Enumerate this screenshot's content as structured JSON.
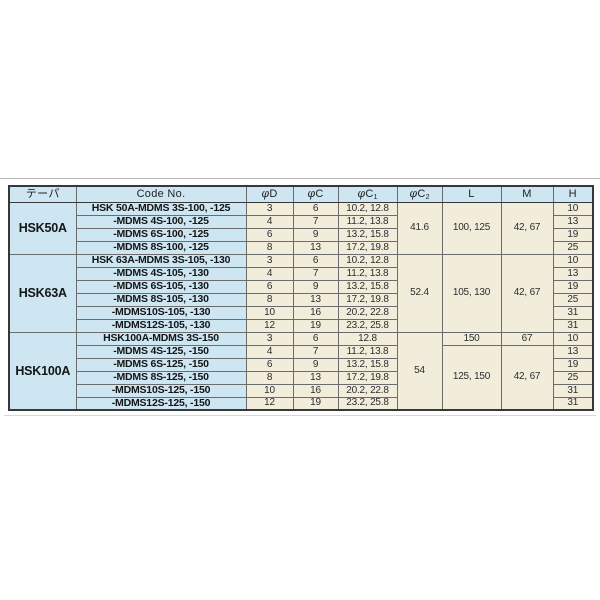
{
  "table": {
    "colors": {
      "cell_blue": "#cde6f2",
      "cell_beige": "#f1edda",
      "border_dark": "#373839",
      "border_inner": "#6b6c6e",
      "text_dark": "#212325"
    },
    "headers": [
      {
        "label": "テーパ"
      },
      {
        "label": "Code No."
      },
      {
        "sym": "φ",
        "letter": "D"
      },
      {
        "sym": "φ",
        "letter": "C"
      },
      {
        "sym": "φ",
        "letter": "C",
        "sub": "1"
      },
      {
        "sym": "φ",
        "letter": "C",
        "sub": "2"
      },
      {
        "label": "L"
      },
      {
        "label": "M"
      },
      {
        "label": "H"
      }
    ],
    "sections": [
      {
        "taper": "HSK50A",
        "c2": "41.6",
        "L": "100, 125",
        "M": "42, 67",
        "rows": [
          {
            "code": "HSK 50A-MDMS 3S-100, -125",
            "d": "3",
            "c": "6",
            "c1": "10.2, 12.8",
            "h": "10"
          },
          {
            "code": "-MDMS 4S-100, -125",
            "d": "4",
            "c": "7",
            "c1": "11.2, 13.8",
            "h": "13"
          },
          {
            "code": "-MDMS 6S-100, -125",
            "d": "6",
            "c": "9",
            "c1": "13.2, 15.8",
            "h": "19"
          },
          {
            "code": "-MDMS 8S-100, -125",
            "d": "8",
            "c": "13",
            "c1": "17.2, 19.8",
            "h": "25"
          }
        ]
      },
      {
        "taper": "HSK63A",
        "c2": "52.4",
        "L": "105, 130",
        "M": "42, 67",
        "rows": [
          {
            "code": "HSK 63A-MDMS 3S-105, -130",
            "d": "3",
            "c": "6",
            "c1": "10.2, 12.8",
            "h": "10"
          },
          {
            "code": "-MDMS 4S-105, -130",
            "d": "4",
            "c": "7",
            "c1": "11.2, 13.8",
            "h": "13"
          },
          {
            "code": "-MDMS 6S-105, -130",
            "d": "6",
            "c": "9",
            "c1": "13.2, 15.8",
            "h": "19"
          },
          {
            "code": "-MDMS 8S-105, -130",
            "d": "8",
            "c": "13",
            "c1": "17.2, 19.8",
            "h": "25"
          },
          {
            "code": "-MDMS10S-105, -130",
            "d": "10",
            "c": "16",
            "c1": "20.2, 22.8",
            "h": "31"
          },
          {
            "code": "-MDMS12S-105, -130",
            "d": "12",
            "c": "19",
            "c1": "23.2, 25.8",
            "h": "31"
          }
        ]
      },
      {
        "taper": "HSK100A",
        "c2": "54",
        "rows": [
          {
            "code": "HSK100A-MDMS 3S-150",
            "align": "center",
            "d": "3",
            "c": "6",
            "c1": "12.8",
            "h": "10",
            "L": "150",
            "M": "67"
          },
          {
            "code": "-MDMS 4S-125, -150",
            "d": "4",
            "c": "7",
            "c1": "11.2, 13.8",
            "h": "13",
            "L_span": "125, 150",
            "M_span": "42, 67"
          },
          {
            "code": "-MDMS 6S-125, -150",
            "d": "6",
            "c": "9",
            "c1": "13.2, 15.8",
            "h": "19"
          },
          {
            "code": "-MDMS 8S-125, -150",
            "d": "8",
            "c": "13",
            "c1": "17.2, 19.8",
            "h": "25"
          },
          {
            "code": "-MDMS10S-125, -150",
            "d": "10",
            "c": "16",
            "c1": "20.2, 22.8",
            "h": "31"
          },
          {
            "code": "-MDMS12S-125, -150",
            "d": "12",
            "c": "19",
            "c1": "23.2, 25.8",
            "h": "31"
          }
        ]
      }
    ]
  }
}
